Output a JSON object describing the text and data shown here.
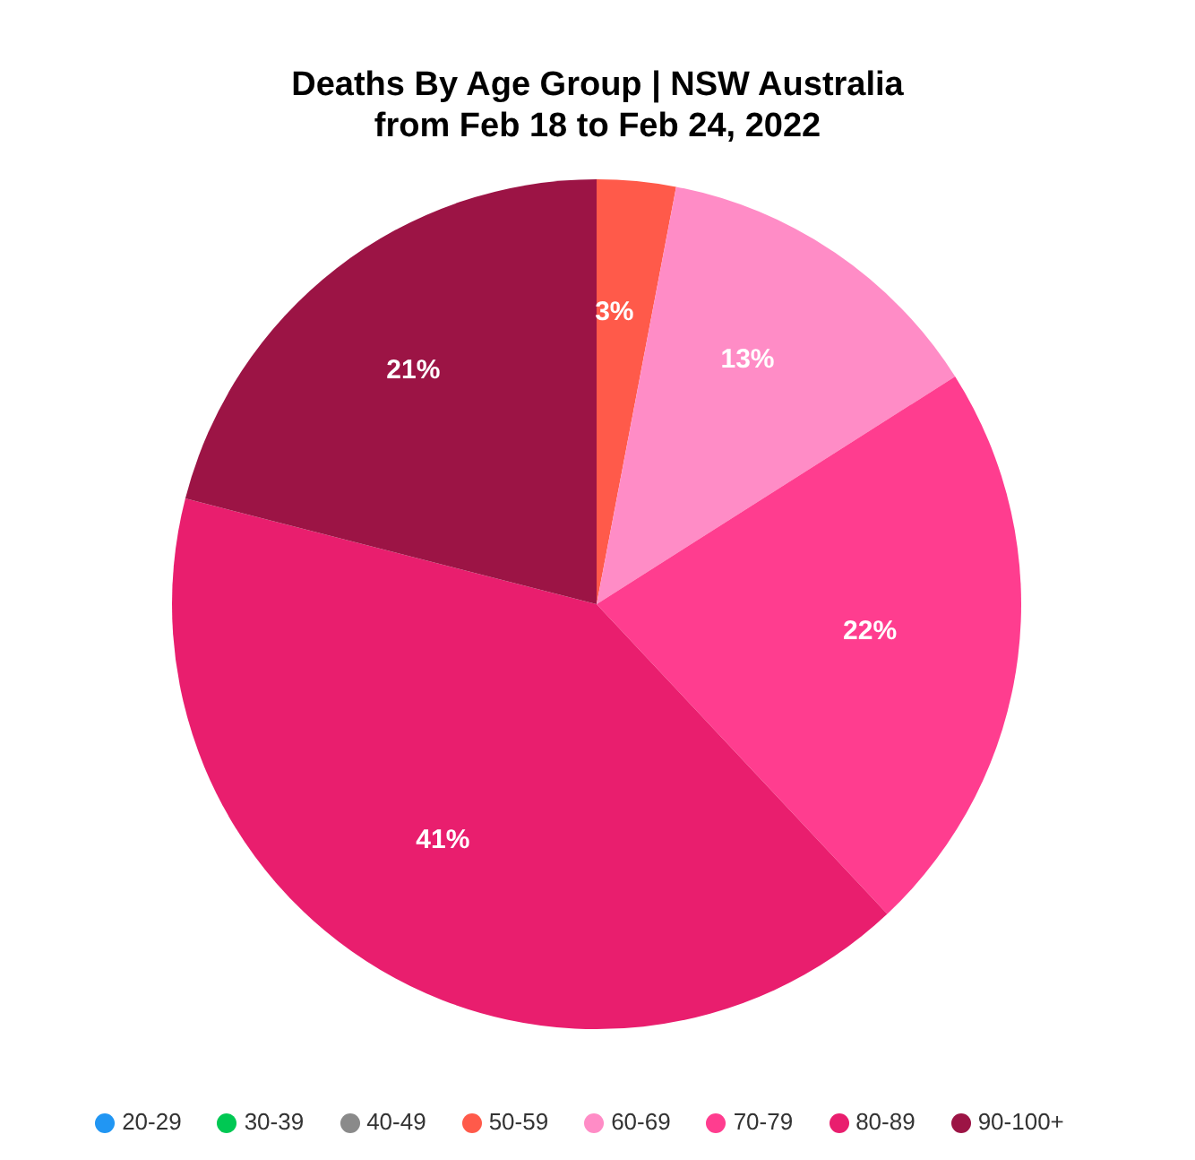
{
  "chart_data": {
    "type": "pie",
    "title": "Deaths By Age Group | NSW Australia",
    "subtitle": "from Feb 18 to Feb 24, 2022",
    "categories": [
      "20-29",
      "30-39",
      "40-49",
      "50-59",
      "60-69",
      "70-79",
      "80-89",
      "90-100+"
    ],
    "values": [
      0,
      0,
      0,
      3,
      13,
      22,
      41,
      21
    ],
    "value_labels": [
      null,
      null,
      null,
      "3%",
      "13%",
      "22%",
      "41%",
      "21%"
    ],
    "colors": [
      "#2196f3",
      "#00c853",
      "#8a8a8a",
      "#ff5a4a",
      "#ff8cc6",
      "#ff3d8f",
      "#e91e6e",
      "#9c1445"
    ],
    "legend": "bottom"
  }
}
